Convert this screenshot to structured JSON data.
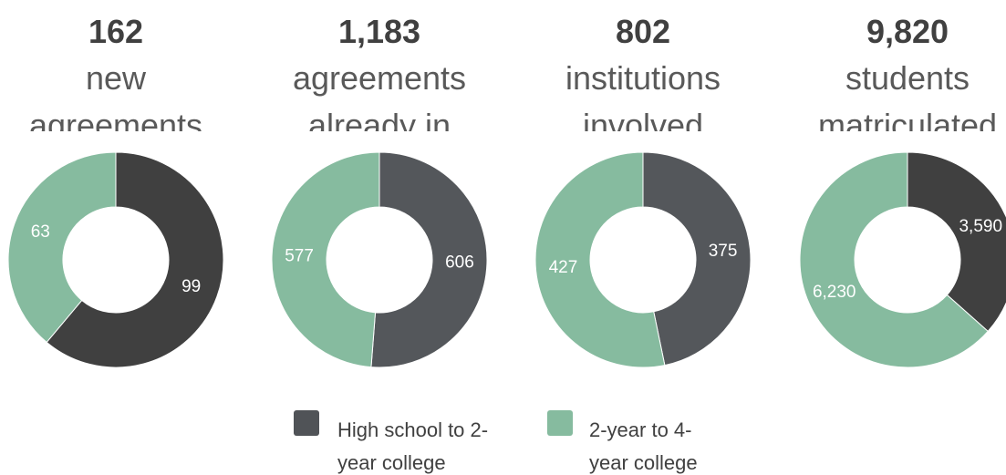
{
  "chart_data": [
    {
      "type": "donut",
      "title": "162",
      "subtitle": "new agreements",
      "categories": [
        "High school to 2-year college",
        "2-year to 4-year college"
      ],
      "values": [
        99,
        63
      ],
      "colors": [
        "#404040",
        "#86bb9f"
      ]
    },
    {
      "type": "donut",
      "title": "1,183",
      "subtitle": "agreements already in",
      "categories": [
        "High school to 2-year college",
        "2-year to 4-year college"
      ],
      "values": [
        606,
        577
      ],
      "colors": [
        "#54575b",
        "#86bb9f"
      ]
    },
    {
      "type": "donut",
      "title": "802",
      "subtitle": "institutions involved",
      "categories": [
        "High school to 2-year college",
        "2-year to 4-year college"
      ],
      "values": [
        375,
        427
      ],
      "colors": [
        "#54575b",
        "#86bb9f"
      ]
    },
    {
      "type": "donut",
      "title": "9,820",
      "subtitle": "students matriculated",
      "categories": [
        "High school to 2-year college",
        "2-year to 4-year college"
      ],
      "values": [
        3590,
        6230
      ],
      "value_labels": [
        "3,590",
        "6,230"
      ],
      "colors": [
        "#404040",
        "#86bb9f"
      ]
    }
  ]
}
